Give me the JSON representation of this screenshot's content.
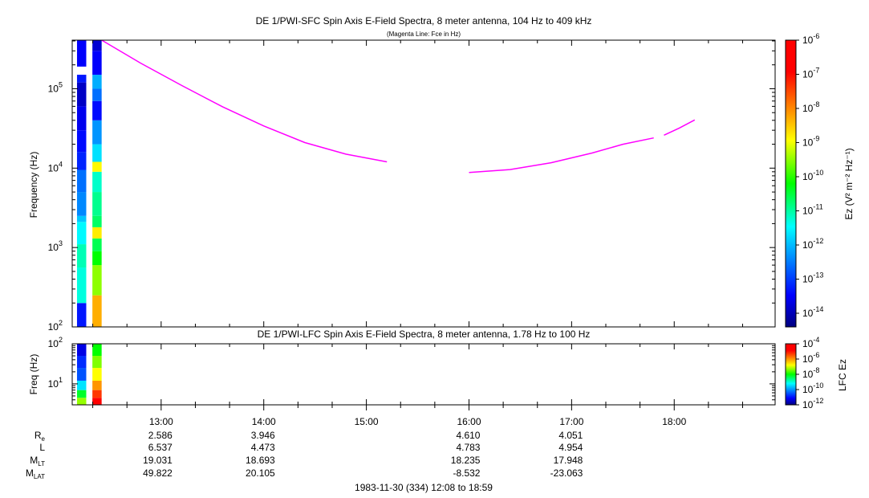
{
  "top_panel": {
    "title": "DE 1/PWI-SFC  Spin Axis E-Field Spectra, 8 meter antenna, 104 Hz to 409 kHz",
    "subtitle": "(Magenta Line: Fce in Hz)",
    "ylabel": "Frequency (Hz)",
    "colorbar_label": "Ez (V² m⁻² Hz⁻¹)"
  },
  "bottom_panel": {
    "title": "DE 1/PWI-LFC  Spin Axis E-Field Spectra, 8 meter antenna, 1.78 Hz to 100 Hz",
    "ylabel": "Freq (Hz)",
    "colorbar_label": "LFC Ez"
  },
  "footer": "1983-11-30 (334) 12:08 to 18:59",
  "ephemeris": {
    "labels": [
      "R",
      "L",
      "M",
      "M"
    ],
    "label_subscripts": [
      "e",
      "",
      "LT",
      "LAT"
    ],
    "columns": [
      {
        "time": "13:00",
        "values": [
          "2.586",
          "6.537",
          "19.031",
          "49.822"
        ]
      },
      {
        "time": "14:00",
        "values": [
          "3.946",
          "4.473",
          "18.693",
          "20.105"
        ]
      },
      {
        "time": "16:00",
        "values": [
          "4.610",
          "4.783",
          "18.235",
          "-8.532"
        ]
      },
      {
        "time": "17:00",
        "values": [
          "4.051",
          "4.954",
          "17.948",
          "-23.063"
        ]
      }
    ]
  },
  "chart_data": [
    {
      "type": "heatmap",
      "title": "DE 1/PWI-SFC  Spin Axis E-Field Spectra, 8 meter antenna, 104 Hz to 409 kHz",
      "subtitle": "(Magenta Line: Fce in Hz)",
      "xlabel": "",
      "ylabel": "Frequency (Hz)",
      "x_ticks": [
        "13:00",
        "14:00",
        "15:00",
        "16:00",
        "17:00",
        "18:00"
      ],
      "x_range_hours": [
        12.1333,
        18.9833
      ],
      "y_scale": "log",
      "y_range_hz": [
        100,
        409000
      ],
      "y_tick_exponents": [
        "2",
        "3",
        "4",
        "5"
      ],
      "colorbar": {
        "label": "Ez (V² m⁻² Hz⁻¹)",
        "scale": "log",
        "range_exp": [
          -14.4,
          -6
        ],
        "tick_exponents": [
          "-6",
          "-7",
          "-8",
          "-9",
          "-10",
          "-11",
          "-12",
          "-13",
          "-14"
        ]
      },
      "data_columns": [
        {
          "time_start": 12.18,
          "time_end": 12.27,
          "cells": [
            [
              100,
              200,
              -13.3
            ],
            [
              200,
              560,
              -11.3
            ],
            [
              560,
              1100,
              -11.1
            ],
            [
              1100,
              2100,
              -11.5
            ],
            [
              2100,
              2500,
              -11.9
            ],
            [
              2500,
              5000,
              -12.4
            ],
            [
              5000,
              9500,
              -12.6
            ],
            [
              9500,
              16000,
              -13.2
            ],
            [
              16000,
              30000,
              -13.4
            ],
            [
              30000,
              60000,
              -13.6
            ],
            [
              60000,
              120000,
              -13.9
            ],
            [
              120000,
              150000,
              -13.3
            ],
            [
              190000,
              409000,
              -13.5
            ]
          ]
        },
        {
          "time_start": 12.33,
          "time_end": 12.42,
          "cells": [
            [
              100,
              250,
              -8.3
            ],
            [
              250,
              600,
              -9.5
            ],
            [
              600,
              900,
              -10.2
            ],
            [
              900,
              1300,
              -10.6
            ],
            [
              1300,
              1800,
              -8.8
            ],
            [
              1800,
              2500,
              -10.7
            ],
            [
              2500,
              5000,
              -10.9
            ],
            [
              5000,
              9000,
              -11.2
            ],
            [
              9000,
              12000,
              -8.9
            ],
            [
              12000,
              20000,
              -11.7
            ],
            [
              20000,
              40000,
              -12.3
            ],
            [
              40000,
              70000,
              -13.4
            ],
            [
              70000,
              100000,
              -12.6
            ],
            [
              100000,
              150000,
              -12.1
            ],
            [
              150000,
              300000,
              -13.5
            ],
            [
              300000,
              409000,
              -13.8
            ]
          ]
        }
      ],
      "series": [
        {
          "name": "Fce",
          "color": "#ff00ff",
          "segments": [
            [
              [
                12.42,
                409000
              ],
              [
                12.8,
                210000
              ],
              [
                13.2,
                110000
              ],
              [
                13.6,
                59000
              ],
              [
                14.0,
                34000
              ],
              [
                14.4,
                21000
              ],
              [
                14.8,
                15000
              ],
              [
                15.2,
                12000
              ]
            ],
            [
              [
                16.0,
                8800
              ],
              [
                16.4,
                9600
              ],
              [
                16.8,
                11700
              ],
              [
                17.2,
                15500
              ],
              [
                17.5,
                20000
              ],
              [
                17.8,
                24000
              ]
            ],
            [
              [
                17.9,
                26000
              ],
              [
                18.05,
                32000
              ],
              [
                18.2,
                40500
              ]
            ]
          ]
        }
      ]
    },
    {
      "type": "heatmap",
      "title": "DE 1/PWI-LFC  Spin Axis E-Field Spectra, 8 meter antenna, 1.78 Hz to 100 Hz",
      "xlabel": "",
      "ylabel": "Freq (Hz)",
      "x_range_hours": [
        12.1333,
        18.9833
      ],
      "y_scale": "log",
      "y_range_hz": [
        3,
        100
      ],
      "y_tick_exponents": [
        "1",
        "2"
      ],
      "colorbar": {
        "label": "LFC Ez",
        "scale": "log",
        "range_exp": [
          -12,
          -4
        ],
        "tick_exponents": [
          "-4",
          "-6",
          "-8",
          "-10",
          "-12"
        ]
      },
      "data_columns": [
        {
          "time_start": 12.18,
          "time_end": 12.27,
          "cells": [
            [
              3,
              4.5,
              -7.3
            ],
            [
              4.5,
              7,
              -8.2
            ],
            [
              7,
              12,
              -9.4
            ],
            [
              12,
              25,
              -10.5
            ],
            [
              25,
              50,
              -10.8
            ],
            [
              50,
              100,
              -11.3
            ]
          ]
        },
        {
          "time_start": 12.33,
          "time_end": 12.42,
          "cells": [
            [
              3,
              4.5,
              -4.6
            ],
            [
              4.5,
              7,
              -5.3
            ],
            [
              7,
              12,
              -6.0
            ],
            [
              12,
              25,
              -6.8
            ],
            [
              25,
              50,
              -7.4
            ],
            [
              50,
              100,
              -8.0
            ]
          ]
        }
      ]
    }
  ]
}
